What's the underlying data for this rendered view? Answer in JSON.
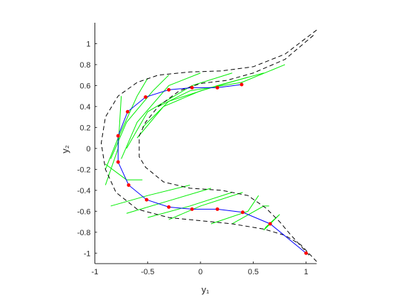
{
  "chart_data": {
    "type": "line",
    "xlabel": "y₁",
    "ylabel": "y₂",
    "xlim": [
      -1,
      1.1
    ],
    "ylim": [
      -1.1,
      1.2
    ],
    "xticks": [
      -1,
      -0.5,
      0,
      0.5,
      1
    ],
    "yticks": [
      -1,
      -0.8,
      -0.6,
      -0.4,
      -0.2,
      0,
      0.2,
      0.4,
      0.6,
      0.8,
      1
    ],
    "series": [
      {
        "color": "#00ee00",
        "style": "solid",
        "x": [
          -0.6,
          -0.35,
          0.0,
          0.45
        ],
        "y": [
          0.1,
          0.4,
          0.55,
          0.68
        ]
      },
      {
        "color": "#00ee00",
        "style": "solid",
        "x": [
          -0.55,
          -0.3,
          0.16,
          0.6
        ],
        "y": [
          0.2,
          0.45,
          0.6,
          0.72
        ]
      },
      {
        "color": "#00ee00",
        "style": "solid",
        "x": [
          -0.4,
          -0.1,
          0.39,
          0.8
        ],
        "y": [
          0.4,
          0.55,
          0.63,
          0.8
        ]
      },
      {
        "color": "#00ee00",
        "style": "solid",
        "x": [
          -0.7,
          -0.5,
          -0.08,
          0.3
        ],
        "y": [
          0.0,
          0.35,
          0.6,
          0.72
        ]
      },
      {
        "color": "#00ee00",
        "style": "solid",
        "x": [
          -0.75,
          -0.6,
          -0.3,
          0.0
        ],
        "y": [
          -0.1,
          0.25,
          0.6,
          0.72
        ]
      },
      {
        "color": "#00ee00",
        "style": "solid",
        "x": [
          -0.85,
          -0.7,
          -0.45,
          -0.3
        ],
        "y": [
          -0.1,
          0.25,
          0.55,
          0.7
        ]
      },
      {
        "color": "#00ee00",
        "style": "solid",
        "x": [
          -0.9,
          -0.78,
          -0.6,
          -0.5
        ],
        "y": [
          -0.2,
          0.1,
          0.5,
          0.67
        ]
      },
      {
        "color": "#00ee00",
        "style": "solid",
        "x": [
          -0.9,
          -0.78,
          -0.75
        ],
        "y": [
          -0.35,
          0.0,
          0.5
        ]
      },
      {
        "color": "#00ee00",
        "style": "solid",
        "x": [
          -0.9,
          -0.7,
          -0.55
        ],
        "y": [
          -0.15,
          -0.3,
          -0.3
        ]
      },
      {
        "color": "#00ee00",
        "style": "solid",
        "x": [
          -0.85,
          -0.5,
          -0.1
        ],
        "y": [
          -0.55,
          -0.45,
          -0.35
        ]
      },
      {
        "color": "#00ee00",
        "style": "solid",
        "x": [
          -0.7,
          -0.3,
          0.1
        ],
        "y": [
          -0.62,
          -0.5,
          -0.38
        ]
      },
      {
        "color": "#00ee00",
        "style": "solid",
        "x": [
          -0.5,
          -0.1,
          0.3
        ],
        "y": [
          -0.66,
          -0.55,
          -0.42
        ]
      },
      {
        "color": "#00ee00",
        "style": "solid",
        "x": [
          -0.3,
          0.0,
          0.4
        ],
        "y": [
          -0.68,
          -0.55,
          -0.42
        ]
      },
      {
        "color": "#00ee00",
        "style": "solid",
        "x": [
          0.1,
          0.45,
          0.55
        ],
        "y": [
          -0.72,
          -0.6,
          -0.45
        ]
      },
      {
        "color": "#00ee00",
        "style": "solid",
        "x": [
          0.3,
          0.6,
          0.65
        ],
        "y": [
          -0.72,
          -0.55,
          -0.55
        ]
      },
      {
        "color": "#00ee00",
        "style": "solid",
        "x": [
          0.6,
          0.75,
          0.62,
          0.6
        ],
        "y": [
          -0.78,
          -0.63,
          -0.75,
          -0.78
        ]
      },
      {
        "color": "#000000",
        "style": "dashed",
        "x": [
          1.1,
          0.8,
          0.5,
          0.2,
          -0.1,
          -0.4,
          -0.6,
          -0.78,
          -0.9,
          -0.94,
          -0.9,
          -0.8,
          -0.6,
          -0.3,
          0,
          0.3,
          0.6,
          0.8,
          0.95,
          1.1
        ],
        "y": [
          1.13,
          0.9,
          0.78,
          0.74,
          0.73,
          0.7,
          0.63,
          0.5,
          0.3,
          0.05,
          -0.2,
          -0.42,
          -0.58,
          -0.66,
          -0.69,
          -0.72,
          -0.77,
          -0.83,
          -0.92,
          -1.08
        ]
      },
      {
        "color": "#000000",
        "style": "dashed",
        "x": [
          1.07,
          0.8,
          0.5,
          0.25,
          0,
          -0.2,
          -0.4,
          -0.52,
          -0.58,
          -0.58,
          -0.52,
          -0.35,
          -0.1,
          0.2,
          0.45,
          0.62,
          0.75,
          0.85,
          1.03
        ],
        "y": [
          1.08,
          0.85,
          0.72,
          0.65,
          0.62,
          0.55,
          0.4,
          0.25,
          0.12,
          -0.08,
          -0.18,
          -0.32,
          -0.38,
          -0.4,
          -0.45,
          -0.57,
          -0.7,
          -0.82,
          -1.02
        ]
      },
      {
        "color": "#0000ff",
        "style": "solid",
        "x": [
          0.39,
          0.16,
          -0.08,
          -0.3,
          -0.52,
          -0.69,
          -0.78,
          -0.78,
          -0.68,
          -0.51,
          -0.3,
          -0.08,
          0.16,
          0.4,
          0.66,
          1.0
        ],
        "y": [
          0.61,
          0.58,
          0.58,
          0.56,
          0.49,
          0.35,
          0.12,
          -0.13,
          -0.35,
          -0.49,
          -0.56,
          -0.58,
          -0.58,
          -0.61,
          -0.72,
          -1.0
        ]
      },
      {
        "color": "#ff0000",
        "style": "none",
        "marker": "dot",
        "x": [
          0.39,
          0.16,
          -0.08,
          -0.3,
          -0.52,
          -0.69,
          -0.78,
          -0.78,
          -0.68,
          -0.51,
          -0.3,
          -0.08,
          0.16,
          0.4,
          0.66,
          1.0
        ],
        "y": [
          0.61,
          0.58,
          0.58,
          0.56,
          0.49,
          0.35,
          0.12,
          -0.13,
          -0.35,
          -0.49,
          -0.56,
          -0.58,
          -0.58,
          -0.61,
          -0.72,
          -1.0
        ]
      }
    ]
  }
}
